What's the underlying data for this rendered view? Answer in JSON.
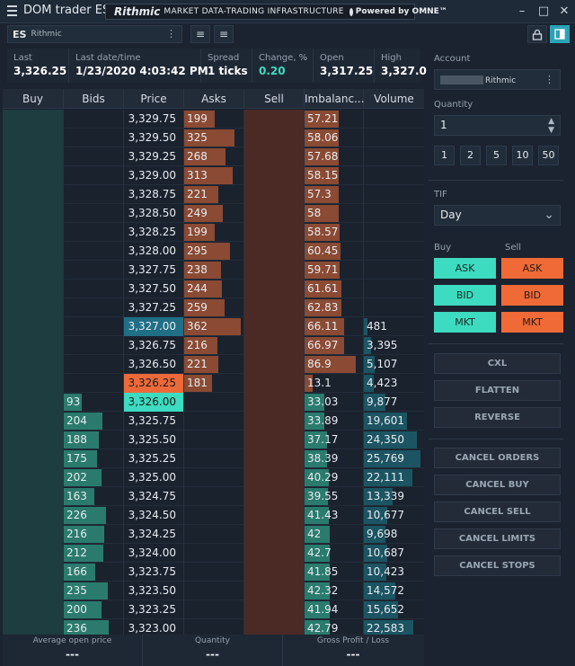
{
  "window": {
    "title": "DOM trader ES",
    "brand": {
      "rithmic": "Rithmic",
      "tagline": "MARKET DATA-TRADING INFRASTRUCTURE",
      "powered": "Powered by OMNE™"
    },
    "controls": {
      "minimize": "–",
      "maximize": "□",
      "close": "✕"
    }
  },
  "toolbar": {
    "symbol": "ES",
    "connection": "Rithmic",
    "more": "⋮",
    "icon_a": "≡",
    "icon_b": "≡",
    "lock": "🔒",
    "panel": "▣"
  },
  "stats": [
    {
      "label": "Last",
      "value": "3,326.25",
      "positive": false
    },
    {
      "label": "Last date/time",
      "value": "1/23/2020 4:03:42 PM",
      "positive": false
    },
    {
      "label": "Spread",
      "value": "1 ticks",
      "positive": false
    },
    {
      "label": "Change, %",
      "value": "0.20",
      "positive": true
    },
    {
      "label": "Open",
      "value": "3,317.25",
      "positive": false
    },
    {
      "label": "High",
      "value": "3,327.0",
      "positive": false
    }
  ],
  "dom": {
    "columns": [
      "Buy",
      "Bids",
      "Price",
      "Asks",
      "Sell",
      "Imbalanc...",
      "Volume"
    ],
    "rows": [
      {
        "price": "3,329.75",
        "bid": "",
        "ask": "199",
        "imb": "57.21",
        "vol": ""
      },
      {
        "price": "3,329.50",
        "bid": "",
        "ask": "325",
        "imb": "58.06",
        "vol": ""
      },
      {
        "price": "3,329.25",
        "bid": "",
        "ask": "268",
        "imb": "57.68",
        "vol": ""
      },
      {
        "price": "3,329.00",
        "bid": "",
        "ask": "313",
        "imb": "58.15",
        "vol": ""
      },
      {
        "price": "3,328.75",
        "bid": "",
        "ask": "221",
        "imb": "57.3",
        "vol": ""
      },
      {
        "price": "3,328.50",
        "bid": "",
        "ask": "249",
        "imb": "58",
        "vol": ""
      },
      {
        "price": "3,328.25",
        "bid": "",
        "ask": "199",
        "imb": "58.57",
        "vol": ""
      },
      {
        "price": "3,328.00",
        "bid": "",
        "ask": "295",
        "imb": "60.45",
        "vol": ""
      },
      {
        "price": "3,327.75",
        "bid": "",
        "ask": "238",
        "imb": "59.71",
        "vol": ""
      },
      {
        "price": "3,327.50",
        "bid": "",
        "ask": "244",
        "imb": "61.61",
        "vol": ""
      },
      {
        "price": "3,327.25",
        "bid": "",
        "ask": "259",
        "imb": "62.83",
        "vol": ""
      },
      {
        "price": "3,327.00",
        "bid": "",
        "ask": "362",
        "imb": "66.11",
        "vol": "481",
        "hl": "best-ask"
      },
      {
        "price": "3,326.75",
        "bid": "",
        "ask": "216",
        "imb": "66.97",
        "vol": "3,395"
      },
      {
        "price": "3,326.50",
        "bid": "",
        "ask": "221",
        "imb": "86.9",
        "vol": "5,107"
      },
      {
        "price": "3,326.25",
        "bid": "",
        "ask": "181",
        "imb": "13.1",
        "vol": "4,423",
        "hl": "last"
      },
      {
        "price": "3,326.00",
        "bid": "93",
        "ask": "",
        "imb": "33.03",
        "vol": "9,877",
        "hl": "best-bid"
      },
      {
        "price": "3,325.75",
        "bid": "204",
        "ask": "",
        "imb": "33.89",
        "vol": "19,601"
      },
      {
        "price": "3,325.50",
        "bid": "188",
        "ask": "",
        "imb": "37.17",
        "vol": "24,350"
      },
      {
        "price": "3,325.25",
        "bid": "175",
        "ask": "",
        "imb": "38.39",
        "vol": "25,769"
      },
      {
        "price": "3,325.00",
        "bid": "202",
        "ask": "",
        "imb": "40.29",
        "vol": "22,111"
      },
      {
        "price": "3,324.75",
        "bid": "163",
        "ask": "",
        "imb": "39.55",
        "vol": "13,339"
      },
      {
        "price": "3,324.50",
        "bid": "226",
        "ask": "",
        "imb": "41.43",
        "vol": "10,677"
      },
      {
        "price": "3,324.25",
        "bid": "216",
        "ask": "",
        "imb": "42",
        "vol": "9,698"
      },
      {
        "price": "3,324.00",
        "bid": "212",
        "ask": "",
        "imb": "42.7",
        "vol": "10,687"
      },
      {
        "price": "3,323.75",
        "bid": "166",
        "ask": "",
        "imb": "41.85",
        "vol": "10,423"
      },
      {
        "price": "3,323.50",
        "bid": "235",
        "ask": "",
        "imb": "42.32",
        "vol": "14,572"
      },
      {
        "price": "3,323.25",
        "bid": "200",
        "ask": "",
        "imb": "41.94",
        "vol": "15,652"
      },
      {
        "price": "3,323.00",
        "bid": "236",
        "ask": "",
        "imb": "42.79",
        "vol": "22,583"
      }
    ]
  },
  "footer": [
    {
      "label": "Average open price",
      "value": "---"
    },
    {
      "label": "Quantity",
      "value": "---"
    },
    {
      "label": "Gross Profit / Loss",
      "value": "---"
    }
  ],
  "panel": {
    "account_label": "Account",
    "account_name": "Rithmic",
    "quantity_label": "Quantity",
    "quantity_value": "1",
    "quantity_presets": [
      "1",
      "2",
      "5",
      "10",
      "50"
    ],
    "tif_label": "TIF",
    "tif_value": "Day",
    "buy_label": "Buy",
    "sell_label": "Sell",
    "buy_buttons": [
      "ASK",
      "BID",
      "MKT"
    ],
    "sell_buttons": [
      "ASK",
      "BID",
      "MKT"
    ],
    "actions": [
      "CXL",
      "FLATTEN",
      "REVERSE"
    ],
    "cancel_actions": [
      "CANCEL ORDERS",
      "CANCEL BUY",
      "CANCEL SELL",
      "CANCEL LIMITS",
      "CANCEL STOPS"
    ]
  },
  "colors": {
    "buy": "#3ddbbf",
    "sell": "#ef6a37",
    "bid_bar": "#2a7b6d",
    "ask_bar": "#8a4a33",
    "volume_bar": "#1c5462"
  }
}
